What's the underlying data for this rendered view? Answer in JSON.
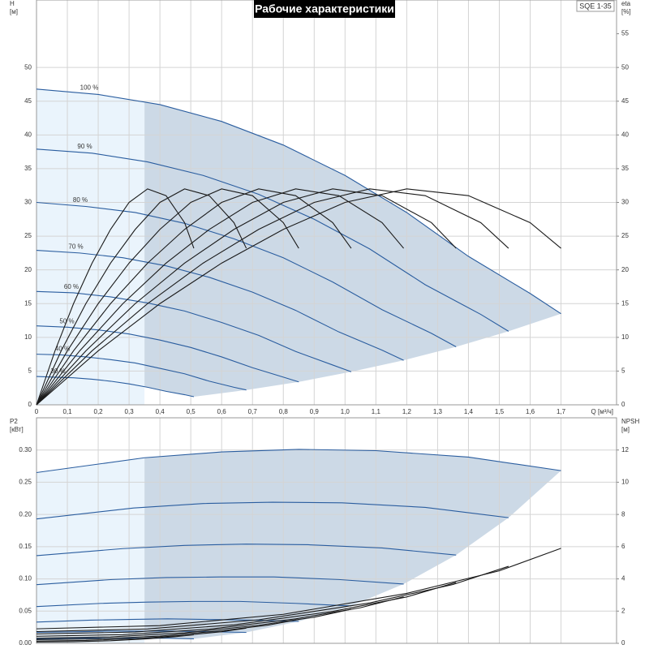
{
  "header": {
    "title": "Рабочие характеристики",
    "model": "SQE 1-35"
  },
  "chart_data": [
    {
      "type": "line",
      "ylabel": [
        "H",
        "[м]"
      ],
      "y2label": [
        "eta",
        "[%]"
      ],
      "xlabel": "Q [м³/ч]",
      "xlim": [
        0,
        1.88
      ],
      "ylim": [
        0,
        60
      ],
      "y2lim": [
        0,
        60
      ],
      "xticks": [
        0,
        {
          "value": 0.1,
          "label": "0,1"
        },
        {
          "value": 0.2,
          "label": "0,2"
        },
        {
          "value": 0.3,
          "label": "0,3"
        },
        {
          "value": 0.4,
          "label": "0,4"
        },
        {
          "value": 0.5,
          "label": "0,5"
        },
        {
          "value": 0.6,
          "label": "0,6"
        },
        {
          "value": 0.7,
          "label": "0,7"
        },
        {
          "value": 0.8,
          "label": "0,8"
        },
        {
          "value": 0.9,
          "label": "0,9"
        },
        {
          "value": 1,
          "label": "1,0"
        },
        {
          "value": 1.1,
          "label": "1,1"
        },
        {
          "value": 1.2,
          "label": "1,2"
        },
        {
          "value": 1.3,
          "label": "1,3"
        },
        {
          "value": 1.4,
          "label": "1,4"
        },
        {
          "value": 1.5,
          "label": "1,5"
        },
        {
          "value": 1.6,
          "label": "1,6"
        },
        {
          "value": 1.7,
          "label": "1,7"
        }
      ],
      "show_xtick_labels": true,
      "yticks": [
        0,
        5,
        10,
        15,
        20,
        25,
        30,
        35,
        40,
        45,
        50
      ],
      "y2ticks": [
        0,
        5,
        10,
        15,
        20,
        25,
        30,
        35,
        40,
        45,
        50,
        55
      ],
      "grid": true,
      "operating_range_start": 0.35,
      "region_color": "#ccd9e6",
      "region_light_color": "#eaf4fc",
      "series": [
        {
          "name": "100 %",
          "color": "#2a5d9f",
          "x": [
            0,
            0.2,
            0.4,
            0.6,
            0.8,
            1.0,
            1.2,
            1.4,
            1.6,
            1.7
          ],
          "values": [
            46.8,
            46,
            44.5,
            42,
            38.5,
            34,
            28.5,
            22,
            16.5,
            13.5
          ]
        },
        {
          "name": "90 %",
          "color": "#2a5d9f",
          "x": [
            0,
            0.18,
            0.36,
            0.54,
            0.72,
            0.9,
            1.08,
            1.26,
            1.44,
            1.53
          ],
          "values": [
            37.9,
            37.3,
            36.0,
            34.0,
            31.2,
            27.5,
            23.1,
            17.8,
            13.4,
            10.9
          ]
        },
        {
          "name": "80 %",
          "color": "#2a5d9f",
          "x": [
            0,
            0.16,
            0.32,
            0.48,
            0.64,
            0.8,
            0.96,
            1.12,
            1.28,
            1.36
          ],
          "values": [
            30.0,
            29.4,
            28.5,
            26.9,
            24.6,
            21.8,
            18.2,
            14.1,
            10.6,
            8.6
          ]
        },
        {
          "name": "70 %",
          "color": "#2a5d9f",
          "x": [
            0,
            0.14,
            0.28,
            0.42,
            0.56,
            0.7,
            0.84,
            0.98,
            1.12,
            1.19
          ],
          "values": [
            22.9,
            22.5,
            21.8,
            20.6,
            18.9,
            16.7,
            14.0,
            10.8,
            8.1,
            6.6
          ]
        },
        {
          "name": "60 %",
          "color": "#2a5d9f",
          "x": [
            0,
            0.12,
            0.24,
            0.36,
            0.48,
            0.6,
            0.72,
            0.84,
            0.96,
            1.02
          ],
          "values": [
            16.8,
            16.6,
            16.0,
            15.1,
            13.9,
            12.2,
            10.3,
            7.9,
            5.9,
            4.9
          ]
        },
        {
          "name": "50 %",
          "color": "#2a5d9f",
          "x": [
            0,
            0.1,
            0.2,
            0.3,
            0.4,
            0.5,
            0.6,
            0.7,
            0.8,
            0.85
          ],
          "values": [
            11.7,
            11.5,
            11.1,
            10.5,
            9.6,
            8.5,
            7.1,
            5.5,
            4.1,
            3.4
          ]
        },
        {
          "name": "40 %",
          "color": "#2a5d9f",
          "x": [
            0,
            0.08,
            0.16,
            0.24,
            0.32,
            0.4,
            0.48,
            0.56,
            0.64,
            0.68
          ],
          "values": [
            7.5,
            7.4,
            7.1,
            6.7,
            6.2,
            5.4,
            4.6,
            3.5,
            2.6,
            2.2
          ]
        },
        {
          "name": "30 %",
          "color": "#2a5d9f",
          "x": [
            0,
            0.06,
            0.12,
            0.18,
            0.24,
            0.3,
            0.36,
            0.42,
            0.48,
            0.51
          ],
          "values": [
            4.2,
            4.1,
            4.0,
            3.8,
            3.5,
            3.1,
            2.6,
            2.0,
            1.5,
            1.2
          ]
        },
        {
          "axis": "y2",
          "color": "#1a1a1a",
          "x": [
            0,
            0.2,
            0.4,
            0.6,
            0.8,
            1.0,
            1.2,
            1.4,
            1.6,
            1.7
          ],
          "values": [
            0,
            8,
            15,
            21,
            26,
            30,
            32,
            31,
            27,
            23.2
          ]
        },
        {
          "axis": "y2",
          "color": "#1a1a1a",
          "x": [
            0,
            0.18,
            0.36,
            0.54,
            0.72,
            0.9,
            1.08,
            1.26,
            1.44,
            1.53
          ],
          "values": [
            0,
            8,
            15,
            21,
            26,
            30,
            32,
            31,
            27,
            23.2
          ]
        },
        {
          "axis": "y2",
          "color": "#1a1a1a",
          "x": [
            0,
            0.16,
            0.32,
            0.48,
            0.64,
            0.8,
            0.96,
            1.12,
            1.28,
            1.36
          ],
          "values": [
            0,
            8,
            15,
            21,
            26,
            30,
            32,
            31,
            27,
            23.2
          ]
        },
        {
          "axis": "y2",
          "color": "#1a1a1a",
          "x": [
            0,
            0.14,
            0.28,
            0.42,
            0.56,
            0.7,
            0.84,
            0.98,
            1.12,
            1.19
          ],
          "values": [
            0,
            8,
            15,
            21,
            26,
            30,
            32,
            31,
            27,
            23.2
          ]
        },
        {
          "axis": "y2",
          "color": "#1a1a1a",
          "x": [
            0,
            0.12,
            0.24,
            0.36,
            0.48,
            0.6,
            0.72,
            0.84,
            0.96,
            1.02
          ],
          "values": [
            0,
            8,
            15,
            21,
            26,
            30,
            32,
            31,
            27,
            23.2
          ]
        },
        {
          "axis": "y2",
          "color": "#1a1a1a",
          "x": [
            0,
            0.1,
            0.2,
            0.3,
            0.4,
            0.5,
            0.6,
            0.7,
            0.8,
            0.85
          ],
          "values": [
            0,
            8,
            15,
            21,
            26,
            30,
            32,
            31,
            27,
            23.2
          ]
        },
        {
          "axis": "y2",
          "color": "#1a1a1a",
          "x": [
            0,
            0.08,
            0.16,
            0.24,
            0.32,
            0.4,
            0.48,
            0.56,
            0.64,
            0.68
          ],
          "values": [
            0,
            8,
            15,
            21,
            26,
            30,
            32,
            31,
            27,
            23.2
          ]
        },
        {
          "axis": "y2",
          "color": "#1a1a1a",
          "x": [
            0,
            0.06,
            0.12,
            0.18,
            0.24,
            0.3,
            0.36,
            0.42,
            0.48,
            0.51
          ],
          "values": [
            0,
            8,
            15,
            21,
            26,
            30,
            32,
            31,
            27,
            23.2
          ]
        }
      ]
    },
    {
      "type": "line",
      "ylabel": [
        "P2",
        "[кВт]"
      ],
      "y2label": [
        "NPSH",
        "[м]"
      ],
      "xlim": [
        0,
        1.88
      ],
      "ylim": [
        0,
        0.35
      ],
      "y2lim": [
        0,
        14
      ],
      "xticks": [
        0,
        0.1,
        0.2,
        0.3,
        0.4,
        0.5,
        0.6,
        0.7,
        0.8,
        0.9,
        1,
        1.1,
        1.2,
        1.3,
        1.4,
        1.5,
        1.6,
        1.7
      ],
      "show_xtick_labels": false,
      "yticks": [
        {
          "value": 0,
          "label": "0.00"
        },
        {
          "value": 0.05,
          "label": "0.05"
        },
        {
          "value": 0.1,
          "label": "0.10"
        },
        {
          "value": 0.15,
          "label": "0.15"
        },
        {
          "value": 0.2,
          "label": "0.20"
        },
        {
          "value": 0.25,
          "label": "0.25"
        },
        {
          "value": 0.3,
          "label": "0.30"
        }
      ],
      "y2ticks": [
        0,
        2,
        4,
        6,
        8,
        10,
        12
      ],
      "grid": true,
      "operating_range_start": 0.35,
      "region_color": "#ccd9e6",
      "region_light_color": "#eaf4fc",
      "series": [
        {
          "color": "#2a5d9f",
          "x": [
            0,
            0.35,
            0.6,
            0.85,
            1.1,
            1.4,
            1.7
          ],
          "values": [
            0.265,
            0.288,
            0.297,
            0.301,
            0.299,
            0.289,
            0.268
          ]
        },
        {
          "color": "#2a5d9f",
          "x": [
            0,
            0.315,
            0.54,
            0.765,
            0.99,
            1.26,
            1.53
          ],
          "values": [
            0.193,
            0.21,
            0.217,
            0.219,
            0.218,
            0.211,
            0.195
          ]
        },
        {
          "color": "#2a5d9f",
          "x": [
            0,
            0.28,
            0.48,
            0.68,
            0.88,
            1.12,
            1.36
          ],
          "values": [
            0.136,
            0.147,
            0.152,
            0.154,
            0.153,
            0.148,
            0.137
          ]
        },
        {
          "color": "#2a5d9f",
          "x": [
            0,
            0.245,
            0.42,
            0.595,
            0.77,
            0.98,
            1.19
          ],
          "values": [
            0.091,
            0.099,
            0.102,
            0.103,
            0.103,
            0.099,
            0.092
          ]
        },
        {
          "color": "#2a5d9f",
          "x": [
            0,
            0.21,
            0.36,
            0.51,
            0.66,
            0.84,
            1.02
          ],
          "values": [
            0.057,
            0.062,
            0.064,
            0.065,
            0.065,
            0.062,
            0.058
          ]
        },
        {
          "color": "#2a5d9f",
          "x": [
            0,
            0.175,
            0.3,
            0.425,
            0.55,
            0.7,
            0.85
          ],
          "values": [
            0.033,
            0.036,
            0.037,
            0.038,
            0.037,
            0.036,
            0.034
          ]
        },
        {
          "color": "#2a5d9f",
          "x": [
            0,
            0.14,
            0.24,
            0.34,
            0.44,
            0.56,
            0.68
          ],
          "values": [
            0.017,
            0.018,
            0.019,
            0.019,
            0.019,
            0.018,
            0.017
          ]
        },
        {
          "color": "#2a5d9f",
          "x": [
            0,
            0.105,
            0.18,
            0.255,
            0.33,
            0.42,
            0.51
          ],
          "values": [
            0.007,
            0.008,
            0.008,
            0.008,
            0.008,
            0.008,
            0.007
          ]
        },
        {
          "axis": "y2",
          "color": "#1a1a1a",
          "x": [
            0,
            0.4,
            0.8,
            1.2,
            1.5,
            1.7
          ],
          "values": [
            0.9,
            1.1,
            1.8,
            3.1,
            4.5,
            5.9
          ]
        },
        {
          "axis": "y2",
          "color": "#1a1a1a",
          "x": [
            0,
            0.36,
            0.72,
            1.08,
            1.35,
            1.53
          ],
          "values": [
            0.73,
            0.89,
            1.46,
            2.51,
            3.65,
            4.78
          ]
        },
        {
          "axis": "y2",
          "color": "#1a1a1a",
          "x": [
            0,
            0.32,
            0.64,
            0.96,
            1.2,
            1.36
          ],
          "values": [
            0.58,
            0.7,
            1.15,
            1.98,
            2.88,
            3.78
          ]
        },
        {
          "axis": "y2",
          "color": "#1a1a1a",
          "x": [
            0,
            0.28,
            0.56,
            0.84,
            1.05,
            1.19
          ],
          "values": [
            0.44,
            0.54,
            0.88,
            1.52,
            2.21,
            2.89
          ]
        },
        {
          "axis": "y2",
          "color": "#1a1a1a",
          "x": [
            0,
            0.24,
            0.48,
            0.72,
            0.9,
            1.02
          ],
          "values": [
            0.32,
            0.4,
            0.65,
            1.12,
            1.62,
            2.12
          ]
        },
        {
          "axis": "y2",
          "color": "#1a1a1a",
          "x": [
            0,
            0.2,
            0.4,
            0.6,
            0.75,
            0.85
          ],
          "values": [
            0.23,
            0.28,
            0.45,
            0.78,
            1.13,
            1.48
          ]
        },
        {
          "axis": "y2",
          "color": "#1a1a1a",
          "x": [
            0,
            0.16,
            0.32,
            0.48,
            0.6,
            0.68
          ],
          "values": [
            0.14,
            0.18,
            0.29,
            0.5,
            0.72,
            0.94
          ]
        },
        {
          "axis": "y2",
          "color": "#1a1a1a",
          "x": [
            0,
            0.12,
            0.24,
            0.36,
            0.45,
            0.51
          ],
          "values": [
            0.08,
            0.1,
            0.16,
            0.28,
            0.41,
            0.53
          ]
        }
      ]
    }
  ]
}
